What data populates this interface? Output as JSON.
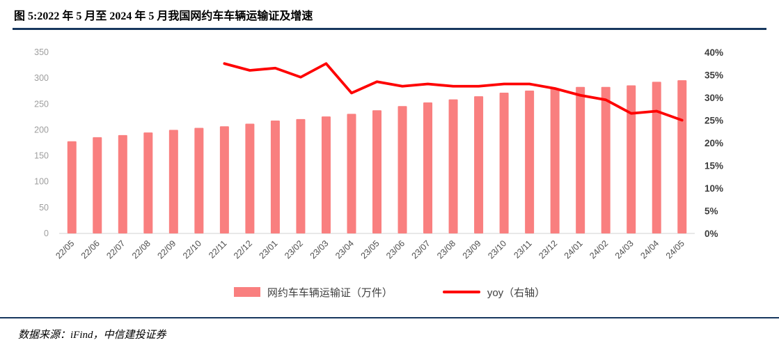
{
  "header": {
    "title": "图 5:2022 年 5 月至 2024 年 5 月我国网约车车辆运输证及增速"
  },
  "legend": {
    "bars_label": "网约车车辆运输证（万件）",
    "line_label": "yoy（右轴）"
  },
  "footer": {
    "source": "数据来源：iFind，中信建投证券"
  },
  "colors": {
    "bar": "#F97F7F",
    "line": "#FE0000",
    "accent_rule": "#17375E",
    "baseline": "#D9D9D9"
  },
  "chart_data": {
    "type": "bar+line",
    "title": "2022年5月至2024年5月我国网约车车辆运输证及增速",
    "categories": [
      "22/05",
      "22/06",
      "22/07",
      "22/08",
      "22/09",
      "22/10",
      "22/11",
      "22/12",
      "23/01",
      "23/02",
      "23/03",
      "23/04",
      "23/05",
      "23/06",
      "23/07",
      "23/08",
      "23/09",
      "23/10",
      "23/11",
      "23/12",
      "24/01",
      "24/02",
      "24/03",
      "24/04",
      "24/05"
    ],
    "series": [
      {
        "name": "网约车车辆运输证（万件）",
        "type": "bar",
        "axis": "left",
        "values": [
          178,
          186,
          190,
          195,
          200,
          204,
          207,
          212,
          218,
          221,
          226,
          231,
          238,
          246,
          253,
          259,
          265,
          272,
          276,
          280,
          283,
          283,
          286,
          293,
          296
        ]
      },
      {
        "name": "yoy（右轴）",
        "type": "line",
        "axis": "right",
        "values": [
          null,
          null,
          null,
          null,
          null,
          null,
          37.5,
          36,
          36.5,
          34.5,
          37.5,
          31,
          33.5,
          32.5,
          33,
          32.5,
          32.5,
          33,
          33,
          32,
          30.5,
          29.5,
          26.5,
          27,
          25
        ]
      }
    ],
    "left_axis": {
      "min": 0,
      "max": 350,
      "step": 50,
      "ticks": [
        0,
        50,
        100,
        150,
        200,
        250,
        300,
        350
      ]
    },
    "right_axis": {
      "min": 0,
      "max": 40,
      "step": 5,
      "ticks": [
        "0%",
        "5%",
        "10%",
        "15%",
        "20%",
        "25%",
        "30%",
        "35%",
        "40%"
      ]
    },
    "grid": false,
    "legend_position": "bottom"
  }
}
